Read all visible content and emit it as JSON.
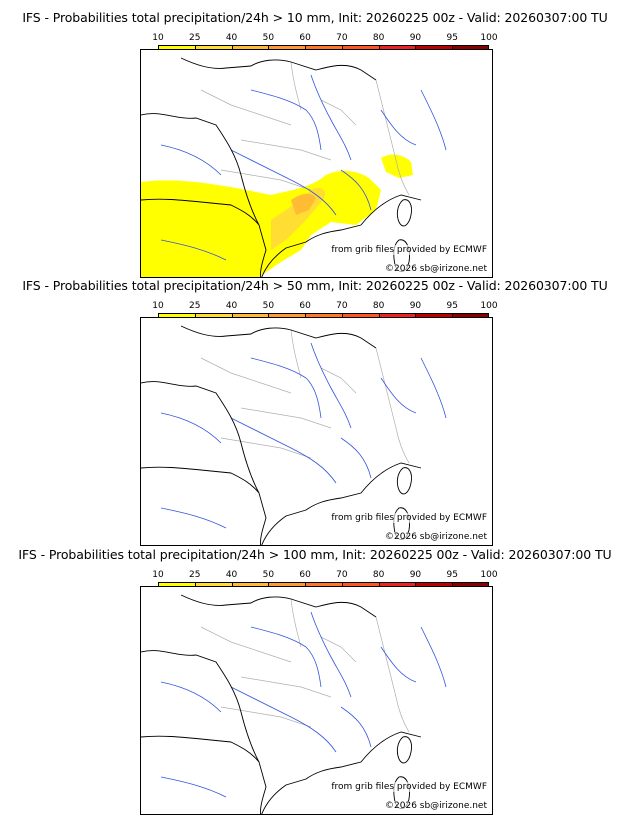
{
  "colorbar": {
    "ticks": [
      "10",
      "25",
      "40",
      "50",
      "60",
      "70",
      "80",
      "90",
      "95",
      "100"
    ],
    "colors": [
      "#ffff00",
      "#ffdd33",
      "#ffbb33",
      "#ff9933",
      "#ff7722",
      "#ff5522",
      "#ee2222",
      "#bb0000",
      "#880000"
    ]
  },
  "panels": [
    {
      "title": "IFS - Probabilities total precipitation/24h > 10 mm, Init: 20260225 00z - Valid: 20260307:00 TU",
      "credit_source": "from grib files provided by ECMWF",
      "credit_copyright": "©2026 sb@irizone.net",
      "precip": "high"
    },
    {
      "title": "IFS - Probabilities total precipitation/24h > 50 mm, Init: 20260225 00z - Valid: 20260307:00 TU",
      "credit_source": "from grib files provided by ECMWF",
      "credit_copyright": "©2026 sb@irizone.net",
      "precip": "none"
    },
    {
      "title": "IFS - Probabilities total precipitation/24h > 100 mm, Init: 20260225 00z - Valid: 20260307:00 TU",
      "credit_source": "from grib files provided by ECMWF",
      "credit_copyright": "©2026 sb@irizone.net",
      "precip": "none"
    }
  ]
}
